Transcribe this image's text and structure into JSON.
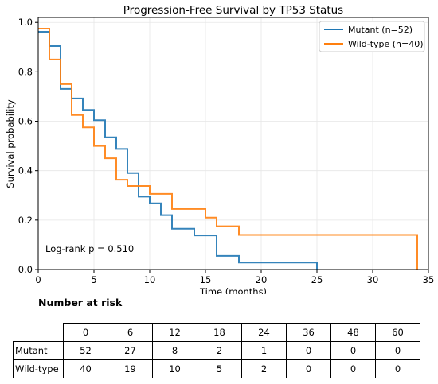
{
  "chart_data": {
    "type": "line",
    "title": "Progression-Free Survival by TP53 Status",
    "xlabel": "Time (months)",
    "ylabel": "Survival probability",
    "xlim": [
      0,
      35
    ],
    "ylim": [
      0,
      1.02
    ],
    "xticks": [
      0,
      5,
      10,
      15,
      20,
      25,
      30,
      35
    ],
    "yticks": [
      0.0,
      0.2,
      0.4,
      0.6,
      0.8,
      1.0
    ],
    "xtick_labels": [
      "0",
      "5",
      "10",
      "15",
      "20",
      "25",
      "30",
      "35"
    ],
    "ytick_labels": [
      "0.0",
      "0.2",
      "0.4",
      "0.6",
      "0.8",
      "1.0"
    ],
    "grid": true,
    "legend_position": "top-right",
    "annotation": "Log-rank p = 0.510",
    "series": [
      {
        "name": "Mutant (n=52)",
        "color": "#1f77b4",
        "steps": [
          [
            0,
            0.962
          ],
          [
            1,
            0.904
          ],
          [
            2,
            0.731
          ],
          [
            3,
            0.692
          ],
          [
            4,
            0.646
          ],
          [
            5,
            0.604
          ],
          [
            6,
            0.535
          ],
          [
            7,
            0.488
          ],
          [
            8,
            0.39
          ],
          [
            9,
            0.295
          ],
          [
            10,
            0.268
          ],
          [
            11,
            0.22
          ],
          [
            12,
            0.165
          ],
          [
            14,
            0.138
          ],
          [
            16,
            0.055
          ],
          [
            18,
            0.028
          ],
          [
            25,
            0.0
          ]
        ]
      },
      {
        "name": "Wild-type (n=40)",
        "color": "#ff7f0e",
        "steps": [
          [
            0,
            0.975
          ],
          [
            1,
            0.85
          ],
          [
            2,
            0.75
          ],
          [
            3,
            0.625
          ],
          [
            4,
            0.575
          ],
          [
            5,
            0.5
          ],
          [
            6,
            0.45
          ],
          [
            7,
            0.363
          ],
          [
            8,
            0.338
          ],
          [
            10,
            0.306
          ],
          [
            12,
            0.245
          ],
          [
            15,
            0.21
          ],
          [
            16,
            0.175
          ],
          [
            18,
            0.14
          ],
          [
            34,
            0.0
          ]
        ]
      }
    ]
  },
  "risk_table": {
    "title": "Number at risk",
    "times": [
      "0",
      "6",
      "12",
      "18",
      "24",
      "36",
      "48",
      "60"
    ],
    "rows": [
      {
        "label": "Mutant",
        "values": [
          "52",
          "27",
          "8",
          "2",
          "1",
          "0",
          "0",
          "0"
        ]
      },
      {
        "label": "Wild-type",
        "values": [
          "40",
          "19",
          "10",
          "5",
          "2",
          "0",
          "0",
          "0"
        ]
      }
    ]
  }
}
